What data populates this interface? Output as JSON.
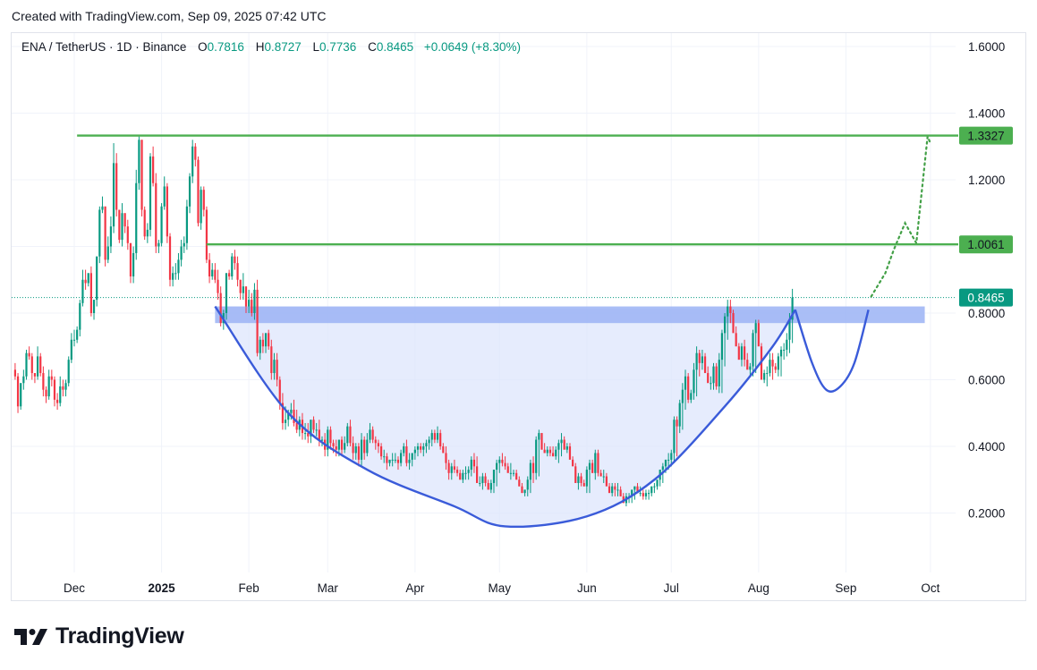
{
  "header": {
    "created_text": "Created with TradingView.com, Sep 09, 2025 07:42 UTC"
  },
  "legend": {
    "symbol": "ENA / TetherUS · 1D · Binance",
    "open_label": "O",
    "open": "0.7816",
    "high_label": "H",
    "high": "0.8727",
    "low_label": "L",
    "low": "0.7736",
    "close_label": "C",
    "close": "0.8465",
    "change": "+0.0649 (+8.30%)"
  },
  "footer": {
    "logo_text": "TradingView"
  },
  "colors": {
    "up": "#089981",
    "down": "#f23645",
    "resistance": "#4caf50",
    "curve": "#3a5bd9",
    "zone": "#9bb3f5",
    "fill": "#dde6fc",
    "price_line": "#089981"
  },
  "chart_data": {
    "type": "candlestick",
    "y_axis": {
      "ticks": [
        "0.2000",
        "0.4000",
        "0.6000",
        "0.8000",
        "1.0000",
        "1.2000",
        "1.4000",
        "1.6000"
      ],
      "range": [
        0.0,
        1.6
      ]
    },
    "x_axis": {
      "ticks": [
        "Dec",
        "2025",
        "Feb",
        "Mar",
        "Apr",
        "May",
        "Jun",
        "Jul",
        "Aug",
        "Sep",
        "Oct"
      ]
    },
    "levels": [
      {
        "name": "resistance-top",
        "value": 1.3327,
        "label": "1.3327",
        "from": "2024-12-02",
        "to": "2025-10-01"
      },
      {
        "name": "resistance-mid",
        "value": 1.0061,
        "label": "1.0061",
        "from": "2025-01-17",
        "to": "2025-10-01"
      }
    ],
    "current_price": {
      "value": 0.8465,
      "label": "0.8465"
    },
    "breakout_zone": {
      "from": "2025-01-20",
      "to": "2025-09-29",
      "low": 0.77,
      "high": 0.82
    },
    "cup_curve": [
      [
        "2025-01-20",
        0.82
      ],
      [
        "2025-02-15",
        0.5
      ],
      [
        "2025-03-15",
        0.33
      ],
      [
        "2025-04-15",
        0.22
      ],
      [
        "2025-05-03",
        0.16
      ],
      [
        "2025-06-01",
        0.19
      ],
      [
        "2025-06-25",
        0.3
      ],
      [
        "2025-07-20",
        0.52
      ],
      [
        "2025-08-06",
        0.7
      ],
      [
        "2025-08-14",
        0.81
      ]
    ],
    "handle_curve": [
      [
        "2025-08-14",
        0.81
      ],
      [
        "2025-08-20",
        0.65
      ],
      [
        "2025-08-25",
        0.57
      ],
      [
        "2025-08-30",
        0.58
      ],
      [
        "2025-09-04",
        0.65
      ],
      [
        "2025-09-09",
        0.81
      ]
    ],
    "projection": [
      [
        "2025-09-10",
        0.85
      ],
      [
        "2025-09-15",
        0.92
      ],
      [
        "2025-09-18",
        0.99
      ],
      [
        "2025-09-22",
        1.07
      ],
      [
        "2025-09-26",
        1.01
      ],
      [
        "2025-09-30",
        1.33
      ],
      [
        "2025-10-01",
        1.31
      ]
    ],
    "candles": {
      "start_date": "2024-11-09",
      "interval": "1D",
      "o": [
        0.59,
        0.63,
        0.61,
        0.52,
        0.59,
        0.61,
        0.68,
        0.67,
        0.62,
        0.61,
        0.67,
        0.62,
        0.57,
        0.55,
        0.61,
        0.6,
        0.54,
        0.53,
        0.58,
        0.57,
        0.59,
        0.66,
        0.72,
        0.72,
        0.75,
        0.83,
        0.9,
        0.89,
        0.92,
        0.8,
        0.84,
        0.97,
        1.11,
        1.12,
        0.96,
        1.0,
        1.06,
        1.25,
        1.11,
        1.02,
        1.1,
        1.06,
        1.01,
        0.91,
        0.98,
        1.19,
        1.32,
        1.11,
        1.03,
        1.05,
        1.27,
        1.19,
        1.0,
        1.01,
        1.12,
        1.18,
        1.03,
        0.9,
        0.92,
        0.92,
        0.96,
        1.0,
        1.01,
        1.12,
        1.21,
        1.3,
        1.26,
        1.07,
        1.17,
        1.11,
        0.96,
        0.91,
        0.93,
        0.9,
        0.86,
        0.77,
        0.8,
        0.92,
        0.91,
        0.97,
        0.95,
        0.9,
        0.86,
        0.88,
        0.82,
        0.84,
        0.8,
        0.87,
        0.68,
        0.72,
        0.7,
        0.74,
        0.7,
        0.62,
        0.66,
        0.6,
        0.53,
        0.47,
        0.48,
        0.5,
        0.51,
        0.47,
        0.45,
        0.48,
        0.44,
        0.44,
        0.43,
        0.48,
        0.45,
        0.45,
        0.42,
        0.42,
        0.39,
        0.45,
        0.41,
        0.4,
        0.39,
        0.42,
        0.39,
        0.41,
        0.46,
        0.41,
        0.38,
        0.4,
        0.36,
        0.42,
        0.38,
        0.42,
        0.45,
        0.42,
        0.41,
        0.4,
        0.37,
        0.37,
        0.35,
        0.36,
        0.36,
        0.36,
        0.35,
        0.38,
        0.4,
        0.35,
        0.36,
        0.38,
        0.39,
        0.4,
        0.39,
        0.4,
        0.41,
        0.42,
        0.44,
        0.42,
        0.44,
        0.4,
        0.38,
        0.35,
        0.32,
        0.34,
        0.33,
        0.32,
        0.3,
        0.32,
        0.32,
        0.33,
        0.36,
        0.34,
        0.29,
        0.29,
        0.31,
        0.29,
        0.27,
        0.29,
        0.33,
        0.35,
        0.36,
        0.35,
        0.34,
        0.32,
        0.32,
        0.32,
        0.3,
        0.28,
        0.26,
        0.27,
        0.3,
        0.35,
        0.32,
        0.42,
        0.44,
        0.39,
        0.38,
        0.39,
        0.38,
        0.37,
        0.39,
        0.41,
        0.42,
        0.39,
        0.4,
        0.36,
        0.34,
        0.29,
        0.31,
        0.29,
        0.28,
        0.33,
        0.35,
        0.32,
        0.38,
        0.32,
        0.31,
        0.31,
        0.28,
        0.26,
        0.28,
        0.27,
        0.27,
        0.25,
        0.23,
        0.25,
        0.25,
        0.27,
        0.28,
        0.26,
        0.26,
        0.25,
        0.26,
        0.26,
        0.28,
        0.28,
        0.3,
        0.33,
        0.34,
        0.36,
        0.36,
        0.38,
        0.48,
        0.46,
        0.53,
        0.57,
        0.61,
        0.54,
        0.56,
        0.63,
        0.68,
        0.65,
        0.67,
        0.62,
        0.59,
        0.59,
        0.64,
        0.58,
        0.66,
        0.74,
        0.79,
        0.82,
        0.8,
        0.74,
        0.7,
        0.66,
        0.7,
        0.66,
        0.63,
        0.64,
        0.74,
        0.77,
        0.7,
        0.6,
        0.62,
        0.62,
        0.66,
        0.64,
        0.63,
        0.67,
        0.69,
        0.69,
        0.72,
        0.78
      ],
      "c": [
        0.63,
        0.61,
        0.52,
        0.59,
        0.61,
        0.68,
        0.67,
        0.62,
        0.61,
        0.67,
        0.62,
        0.57,
        0.55,
        0.61,
        0.6,
        0.54,
        0.53,
        0.58,
        0.57,
        0.59,
        0.66,
        0.72,
        0.72,
        0.75,
        0.83,
        0.9,
        0.89,
        0.92,
        0.8,
        0.84,
        0.97,
        1.11,
        1.12,
        0.96,
        1.0,
        1.06,
        1.25,
        1.11,
        1.02,
        1.1,
        1.06,
        1.01,
        0.91,
        0.98,
        1.19,
        1.32,
        1.11,
        1.03,
        1.05,
        1.27,
        1.19,
        1.0,
        1.01,
        1.12,
        1.18,
        1.03,
        0.9,
        0.92,
        0.92,
        0.96,
        1.0,
        1.01,
        1.12,
        1.21,
        1.3,
        1.26,
        1.07,
        1.17,
        1.11,
        0.96,
        0.91,
        0.93,
        0.9,
        0.86,
        0.77,
        0.8,
        0.92,
        0.91,
        0.97,
        0.95,
        0.9,
        0.86,
        0.88,
        0.82,
        0.84,
        0.8,
        0.87,
        0.68,
        0.72,
        0.7,
        0.74,
        0.7,
        0.62,
        0.66,
        0.6,
        0.53,
        0.47,
        0.48,
        0.5,
        0.51,
        0.47,
        0.45,
        0.48,
        0.44,
        0.44,
        0.43,
        0.48,
        0.45,
        0.45,
        0.42,
        0.42,
        0.39,
        0.45,
        0.41,
        0.4,
        0.39,
        0.42,
        0.39,
        0.41,
        0.46,
        0.41,
        0.38,
        0.4,
        0.36,
        0.42,
        0.38,
        0.42,
        0.45,
        0.42,
        0.41,
        0.4,
        0.37,
        0.37,
        0.35,
        0.36,
        0.36,
        0.36,
        0.35,
        0.38,
        0.4,
        0.35,
        0.36,
        0.38,
        0.39,
        0.4,
        0.39,
        0.4,
        0.41,
        0.42,
        0.44,
        0.42,
        0.44,
        0.4,
        0.38,
        0.35,
        0.32,
        0.34,
        0.33,
        0.32,
        0.3,
        0.32,
        0.32,
        0.33,
        0.36,
        0.34,
        0.29,
        0.29,
        0.31,
        0.29,
        0.27,
        0.29,
        0.33,
        0.35,
        0.36,
        0.35,
        0.34,
        0.32,
        0.32,
        0.32,
        0.3,
        0.28,
        0.26,
        0.27,
        0.3,
        0.35,
        0.32,
        0.42,
        0.44,
        0.39,
        0.38,
        0.39,
        0.38,
        0.37,
        0.39,
        0.41,
        0.42,
        0.39,
        0.4,
        0.36,
        0.34,
        0.29,
        0.31,
        0.29,
        0.28,
        0.33,
        0.35,
        0.32,
        0.38,
        0.32,
        0.31,
        0.31,
        0.28,
        0.26,
        0.28,
        0.27,
        0.27,
        0.25,
        0.23,
        0.25,
        0.25,
        0.27,
        0.28,
        0.26,
        0.26,
        0.25,
        0.26,
        0.26,
        0.28,
        0.28,
        0.3,
        0.33,
        0.34,
        0.36,
        0.36,
        0.38,
        0.48,
        0.46,
        0.53,
        0.57,
        0.61,
        0.54,
        0.56,
        0.63,
        0.68,
        0.65,
        0.67,
        0.62,
        0.59,
        0.59,
        0.64,
        0.58,
        0.66,
        0.74,
        0.79,
        0.82,
        0.8,
        0.74,
        0.7,
        0.66,
        0.7,
        0.66,
        0.63,
        0.64,
        0.74,
        0.77,
        0.7,
        0.6,
        0.62,
        0.62,
        0.66,
        0.64,
        0.63,
        0.67,
        0.69,
        0.69,
        0.72,
        0.78,
        0.8465
      ],
      "h": [
        0.64,
        0.65,
        0.62,
        0.59,
        0.63,
        0.69,
        0.7,
        0.68,
        0.62,
        0.7,
        0.68,
        0.64,
        0.58,
        0.63,
        0.63,
        0.61,
        0.56,
        0.61,
        0.6,
        0.6,
        0.67,
        0.74,
        0.75,
        0.76,
        0.84,
        0.93,
        0.93,
        0.92,
        0.94,
        0.84,
        0.97,
        1.12,
        1.15,
        1.12,
        1.03,
        1.09,
        1.31,
        1.28,
        1.11,
        1.13,
        1.1,
        1.08,
        1.01,
        1.0,
        1.23,
        1.33,
        1.32,
        1.12,
        1.07,
        1.28,
        1.3,
        1.22,
        1.02,
        1.13,
        1.21,
        1.19,
        1.04,
        0.94,
        0.95,
        0.98,
        1.02,
        1.03,
        1.14,
        1.22,
        1.32,
        1.31,
        1.27,
        1.18,
        1.18,
        1.12,
        0.98,
        0.95,
        0.95,
        0.93,
        0.88,
        0.81,
        0.92,
        0.93,
        0.98,
        0.99,
        0.97,
        0.9,
        0.92,
        0.88,
        0.87,
        0.86,
        0.89,
        0.9,
        0.73,
        0.74,
        0.74,
        0.75,
        0.72,
        0.68,
        0.68,
        0.61,
        0.56,
        0.52,
        0.51,
        0.53,
        0.54,
        0.51,
        0.49,
        0.5,
        0.47,
        0.47,
        0.48,
        0.49,
        0.47,
        0.48,
        0.43,
        0.44,
        0.46,
        0.46,
        0.42,
        0.42,
        0.42,
        0.43,
        0.43,
        0.47,
        0.48,
        0.43,
        0.41,
        0.41,
        0.44,
        0.43,
        0.44,
        0.47,
        0.46,
        0.43,
        0.42,
        0.41,
        0.39,
        0.38,
        0.36,
        0.38,
        0.38,
        0.37,
        0.39,
        0.41,
        0.42,
        0.38,
        0.38,
        0.4,
        0.41,
        0.41,
        0.41,
        0.42,
        0.43,
        0.45,
        0.45,
        0.46,
        0.45,
        0.41,
        0.4,
        0.36,
        0.35,
        0.36,
        0.34,
        0.33,
        0.33,
        0.34,
        0.34,
        0.37,
        0.38,
        0.37,
        0.31,
        0.32,
        0.32,
        0.3,
        0.3,
        0.33,
        0.36,
        0.37,
        0.38,
        0.37,
        0.35,
        0.35,
        0.33,
        0.33,
        0.31,
        0.29,
        0.27,
        0.31,
        0.36,
        0.37,
        0.43,
        0.45,
        0.44,
        0.41,
        0.4,
        0.4,
        0.4,
        0.4,
        0.42,
        0.44,
        0.43,
        0.41,
        0.41,
        0.37,
        0.35,
        0.32,
        0.32,
        0.3,
        0.34,
        0.36,
        0.36,
        0.39,
        0.39,
        0.33,
        0.33,
        0.32,
        0.29,
        0.29,
        0.29,
        0.29,
        0.28,
        0.26,
        0.26,
        0.26,
        0.27,
        0.28,
        0.29,
        0.28,
        0.27,
        0.27,
        0.27,
        0.28,
        0.29,
        0.3,
        0.33,
        0.35,
        0.36,
        0.38,
        0.39,
        0.49,
        0.49,
        0.54,
        0.59,
        0.63,
        0.62,
        0.57,
        0.65,
        0.7,
        0.69,
        0.69,
        0.68,
        0.64,
        0.61,
        0.65,
        0.65,
        0.68,
        0.75,
        0.8,
        0.84,
        0.84,
        0.81,
        0.76,
        0.71,
        0.71,
        0.72,
        0.68,
        0.65,
        0.75,
        0.78,
        0.78,
        0.71,
        0.63,
        0.64,
        0.68,
        0.68,
        0.65,
        0.68,
        0.7,
        0.71,
        0.74,
        0.8,
        0.8727
      ],
      "l": [
        0.57,
        0.6,
        0.5,
        0.51,
        0.57,
        0.6,
        0.66,
        0.6,
        0.59,
        0.6,
        0.61,
        0.55,
        0.53,
        0.54,
        0.58,
        0.52,
        0.51,
        0.52,
        0.55,
        0.55,
        0.58,
        0.65,
        0.7,
        0.71,
        0.73,
        0.82,
        0.87,
        0.88,
        0.79,
        0.78,
        0.82,
        0.95,
        1.1,
        0.94,
        0.95,
        0.98,
        1.04,
        1.09,
        1.01,
        1.0,
        1.04,
        0.99,
        0.89,
        0.89,
        0.96,
        1.17,
        1.09,
        1.02,
        1.01,
        1.03,
        1.18,
        0.98,
        0.98,
        1.0,
        1.11,
        1.01,
        0.88,
        0.88,
        0.9,
        0.9,
        0.94,
        0.98,
        0.99,
        1.1,
        1.19,
        1.24,
        1.06,
        1.05,
        1.09,
        0.95,
        0.89,
        0.9,
        0.89,
        0.84,
        0.76,
        0.75,
        0.78,
        0.9,
        0.9,
        0.93,
        0.88,
        0.84,
        0.84,
        0.8,
        0.8,
        0.79,
        0.78,
        0.67,
        0.66,
        0.68,
        0.68,
        0.69,
        0.6,
        0.6,
        0.58,
        0.51,
        0.45,
        0.45,
        0.46,
        0.48,
        0.46,
        0.44,
        0.43,
        0.42,
        0.42,
        0.41,
        0.41,
        0.44,
        0.43,
        0.4,
        0.4,
        0.37,
        0.37,
        0.39,
        0.38,
        0.37,
        0.37,
        0.37,
        0.38,
        0.4,
        0.4,
        0.36,
        0.36,
        0.34,
        0.34,
        0.36,
        0.37,
        0.41,
        0.41,
        0.39,
        0.38,
        0.36,
        0.35,
        0.33,
        0.34,
        0.34,
        0.35,
        0.33,
        0.34,
        0.37,
        0.34,
        0.33,
        0.34,
        0.36,
        0.37,
        0.38,
        0.37,
        0.38,
        0.39,
        0.4,
        0.41,
        0.41,
        0.39,
        0.38,
        0.33,
        0.3,
        0.3,
        0.32,
        0.31,
        0.3,
        0.29,
        0.3,
        0.3,
        0.31,
        0.32,
        0.33,
        0.28,
        0.27,
        0.28,
        0.27,
        0.26,
        0.26,
        0.28,
        0.32,
        0.34,
        0.33,
        0.33,
        0.3,
        0.31,
        0.3,
        0.28,
        0.27,
        0.25,
        0.25,
        0.26,
        0.29,
        0.3,
        0.31,
        0.41,
        0.38,
        0.37,
        0.37,
        0.37,
        0.36,
        0.35,
        0.37,
        0.4,
        0.38,
        0.38,
        0.35,
        0.33,
        0.27,
        0.28,
        0.28,
        0.26,
        0.26,
        0.32,
        0.3,
        0.31,
        0.31,
        0.29,
        0.3,
        0.27,
        0.25,
        0.25,
        0.25,
        0.25,
        0.23,
        0.22,
        0.23,
        0.23,
        0.24,
        0.26,
        0.25,
        0.24,
        0.24,
        0.24,
        0.25,
        0.26,
        0.27,
        0.28,
        0.29,
        0.32,
        0.33,
        0.34,
        0.35,
        0.37,
        0.44,
        0.45,
        0.51,
        0.53,
        0.53,
        0.54,
        0.55,
        0.61,
        0.63,
        0.63,
        0.6,
        0.57,
        0.57,
        0.57,
        0.56,
        0.56,
        0.64,
        0.72,
        0.77,
        0.78,
        0.72,
        0.68,
        0.64,
        0.64,
        0.64,
        0.61,
        0.61,
        0.62,
        0.72,
        0.68,
        0.59,
        0.58,
        0.61,
        0.6,
        0.62,
        0.61,
        0.61,
        0.66,
        0.67,
        0.68,
        0.71,
        0.7736
      ]
    }
  }
}
